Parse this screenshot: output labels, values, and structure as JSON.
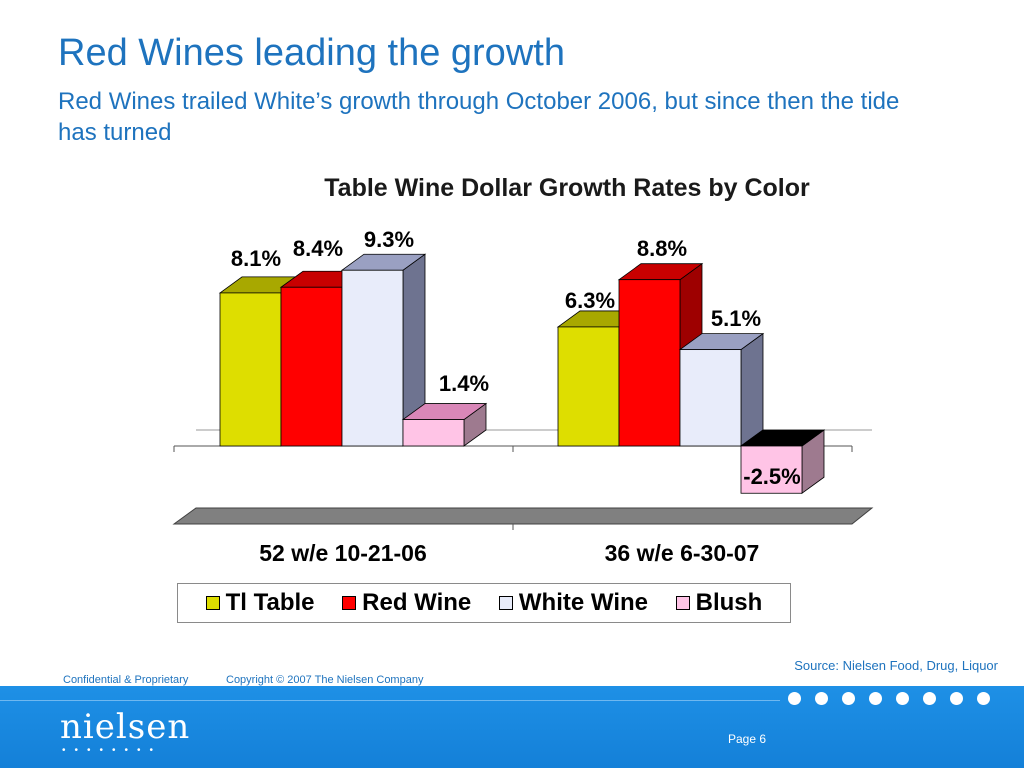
{
  "slide": {
    "title": "Red Wines leading the growth",
    "subtitle": "Red Wines trailed White’s growth through October 2006, but since then the tide has turned"
  },
  "chart_data": {
    "type": "bar",
    "title": "Table Wine Dollar Growth Rates by Color",
    "categories": [
      "52 w/e 10-21-06",
      "36 w/e 6-30-07"
    ],
    "series": [
      {
        "name": "Tl Table",
        "values": [
          8.1,
          6.3
        ],
        "labels": [
          "8.1%",
          "6.3%"
        ],
        "color": "#dede00"
      },
      {
        "name": "Red Wine",
        "values": [
          8.4,
          8.8
        ],
        "labels": [
          "8.4%",
          "8.8%"
        ],
        "color": "#ff0000"
      },
      {
        "name": "White Wine",
        "values": [
          9.3,
          5.1
        ],
        "labels": [
          "9.3%",
          "5.1%"
        ],
        "color": "#e8ecfa"
      },
      {
        "name": "Blush",
        "values": [
          1.4,
          -2.5
        ],
        "labels": [
          "1.4%",
          "-2.5%"
        ],
        "color": "#ffc4e6"
      }
    ],
    "value_unit": "%",
    "ylim": [
      -4,
      10
    ],
    "grid": false,
    "legend_position": "bottom",
    "style": "3d-clustered-column"
  },
  "footer": {
    "source": "Source:  Nielsen Food, Drug, Liquor",
    "confidential": "Confidential & Proprietary",
    "copyright": "Copyright © 2007 The Nielsen Company",
    "logo_text": "nielsen",
    "logo_dots": "••••••••",
    "page": "Page 6"
  },
  "colors": {
    "accent": "#1e73be",
    "footer_bar": "#1480d8"
  }
}
